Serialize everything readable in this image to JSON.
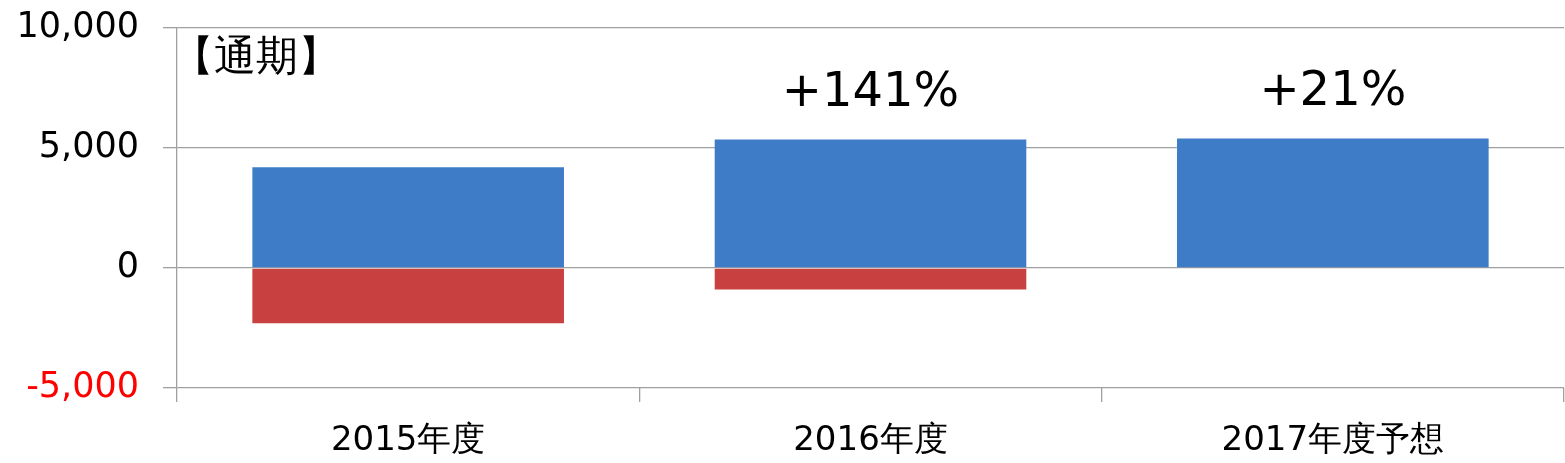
{
  "chart_data": {
    "type": "bar",
    "stacked": true,
    "categories": [
      "2015年度",
      "2016年度",
      "2017年度予想"
    ],
    "series": [
      {
        "color": "#3e7cc8",
        "values": [
          4200,
          5350,
          5400
        ]
      },
      {
        "color": "#c94040",
        "values": [
          -2300,
          -900,
          0
        ]
      }
    ],
    "ylim": [
      -5000,
      10000
    ],
    "yticks": [
      {
        "value": -5000,
        "label": "-5,000"
      },
      0,
      {
        "value": 5000,
        "label": "5,000"
      },
      {
        "value": 10000,
        "label": "10,000"
      }
    ],
    "grid": "y",
    "legend": false,
    "annotations": [
      "【通期】",
      "+141%",
      "+21%"
    ]
  }
}
